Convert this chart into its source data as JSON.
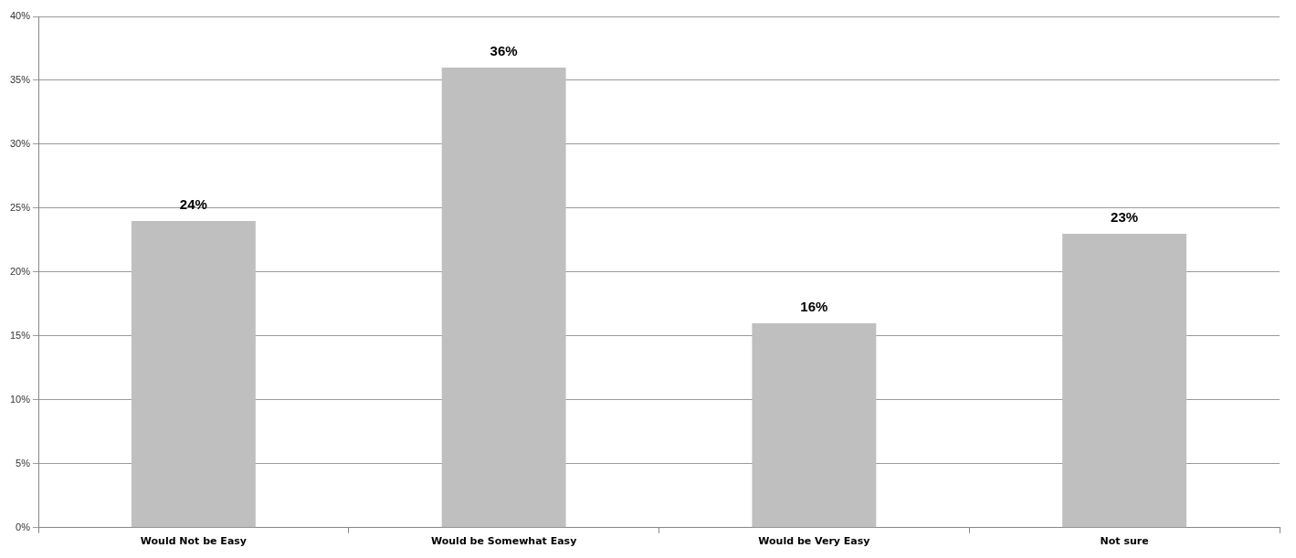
{
  "chart_data": {
    "type": "bar",
    "categories": [
      "Would Not be Easy",
      "Would be Somewhat Easy",
      "Would be Very Easy",
      "Not sure"
    ],
    "values": [
      24,
      36,
      16,
      23
    ],
    "color": "#bfbfbf",
    "value_labels": [
      "24%",
      "36%",
      "16%",
      "23%"
    ],
    "ylim": [
      0,
      40
    ],
    "yticks": [
      {
        "value": 0,
        "label": "0%"
      },
      {
        "value": 5,
        "label": "5%"
      },
      {
        "value": 10,
        "label": "10%"
      },
      {
        "value": 15,
        "label": "15%"
      },
      {
        "value": 20,
        "label": "20%"
      },
      {
        "value": 25,
        "label": "25%"
      },
      {
        "value": 30,
        "label": "30%"
      },
      {
        "value": 35,
        "label": "35%"
      },
      {
        "value": 40,
        "label": "40%"
      }
    ],
    "grid": "y",
    "legend": false
  }
}
